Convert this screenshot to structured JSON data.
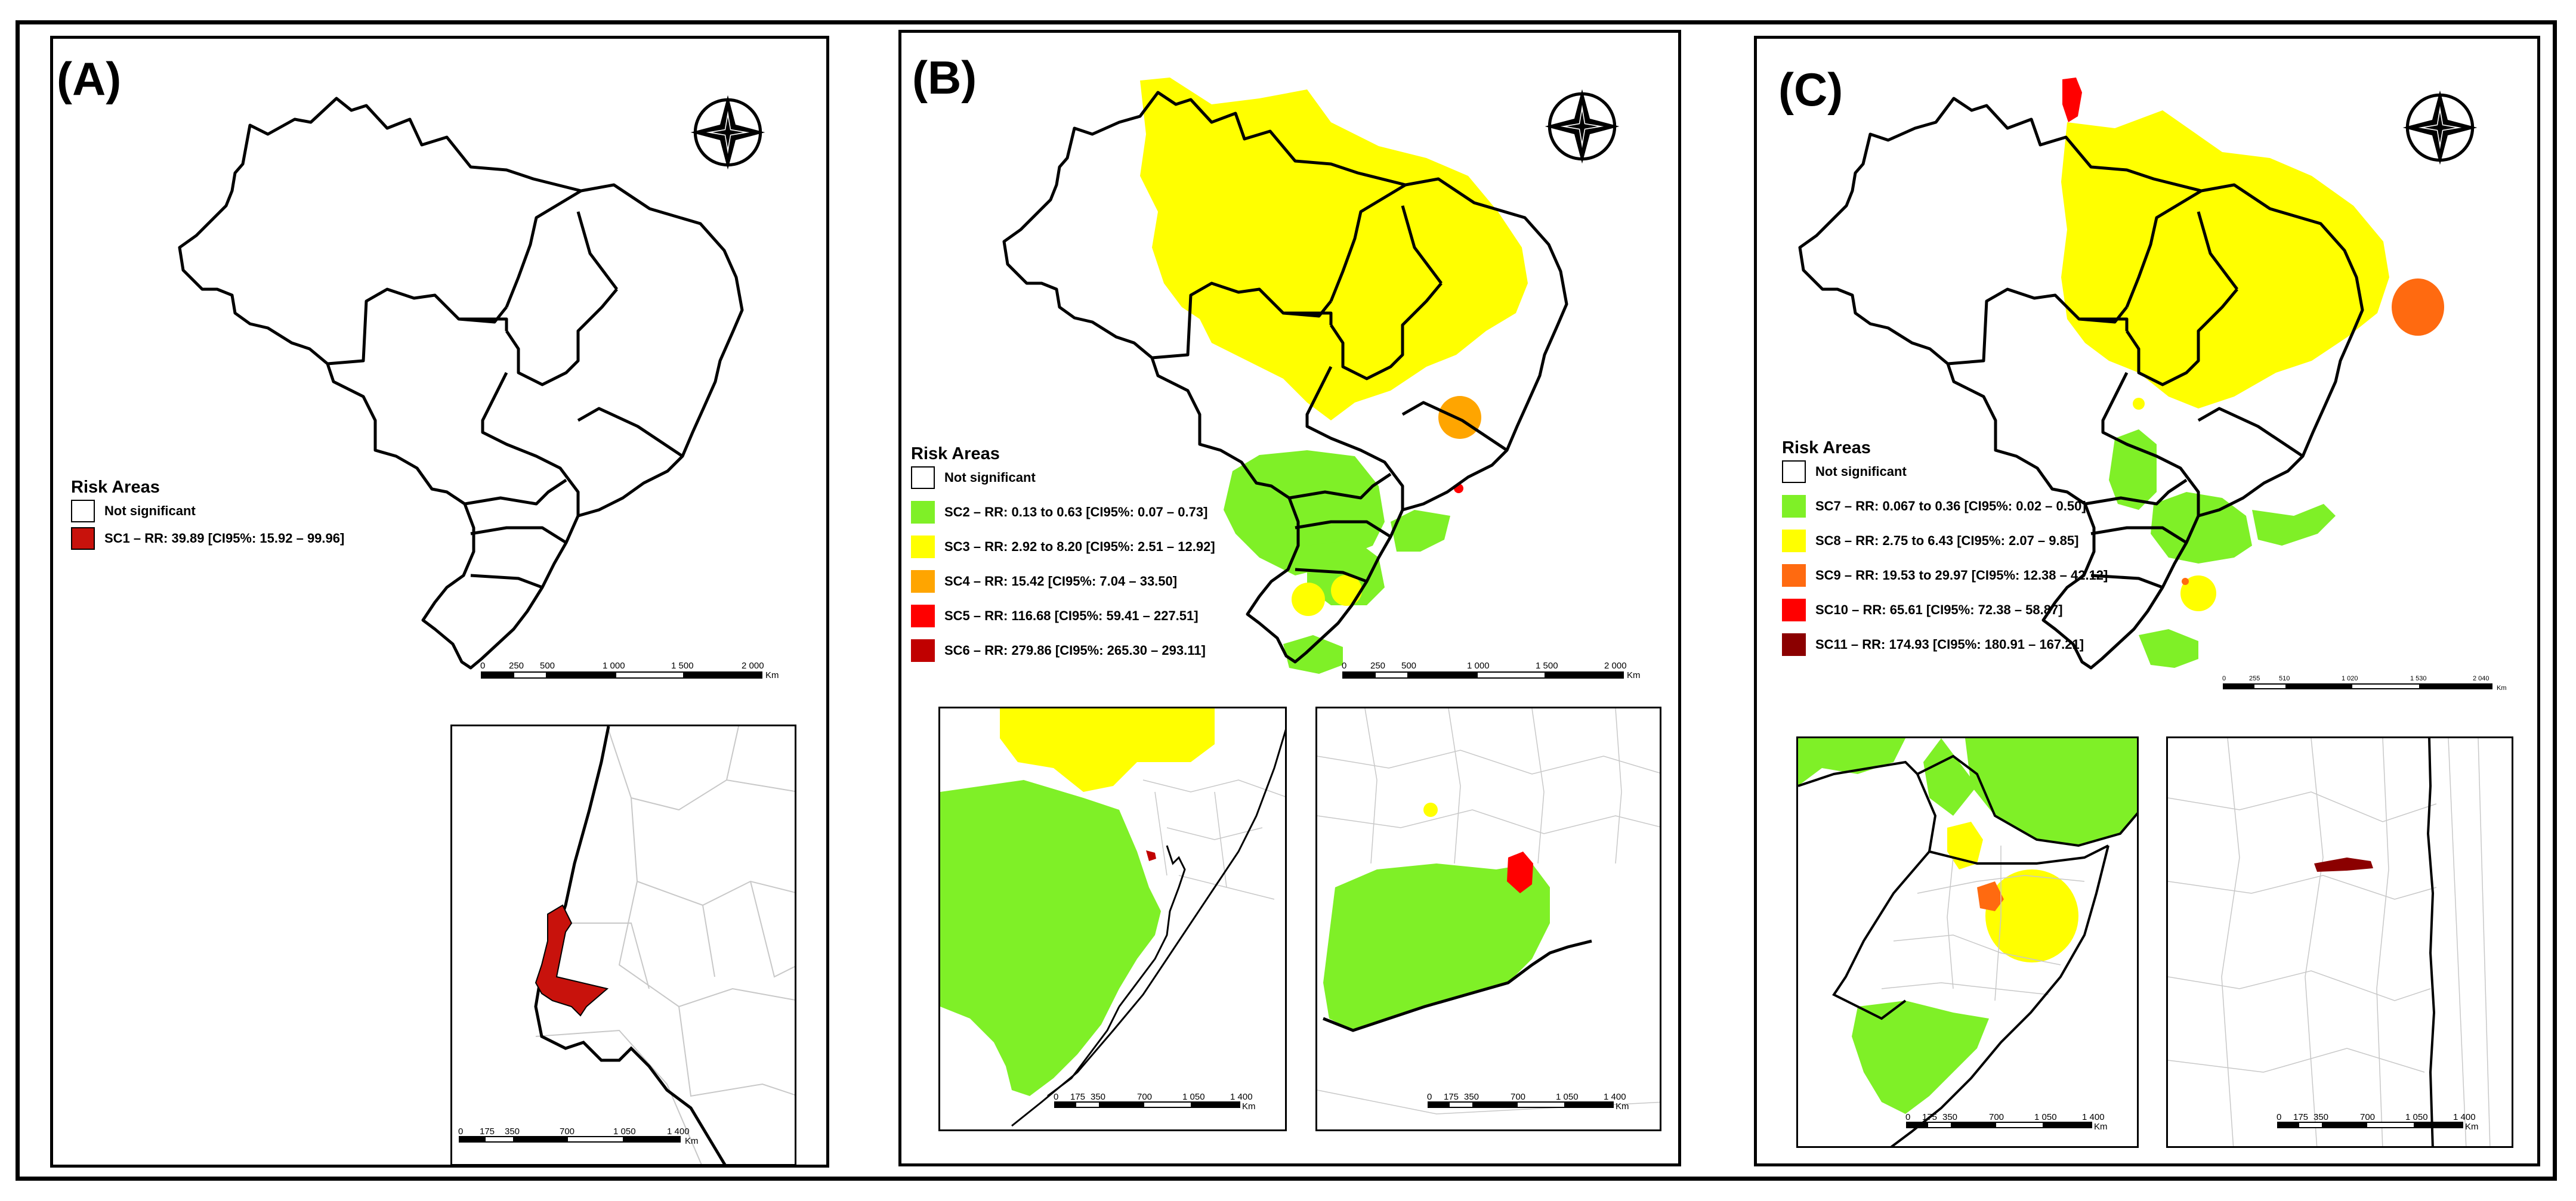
{
  "panels": [
    {
      "label": "(A)",
      "legend": {
        "title": "Risk Areas",
        "items": [
          {
            "label": "Not significant",
            "color": "#ffffff"
          },
          {
            "label": "SC1 – RR: 39.89 [CI95%: 15.92 – 99.96]",
            "color": "#c8120c"
          }
        ]
      },
      "main_scale": {
        "ticks": [
          "0",
          "250",
          "500",
          "1 000",
          "1 500",
          "2 000"
        ],
        "unit": "Km"
      },
      "inset_scale": {
        "ticks": [
          "0",
          "175",
          "350",
          "700",
          "1 050",
          "1 400"
        ],
        "unit": "Km"
      }
    },
    {
      "label": "(B)",
      "legend": {
        "title": "Risk Areas",
        "items": [
          {
            "label": "Not significant",
            "color": "#ffffff"
          },
          {
            "label": "SC2 – RR: 0.13 to 0.63 [CI95%: 0.07 – 0.73]",
            "color": "#7ff027"
          },
          {
            "label": "SC3 – RR: 2.92 to 8.20 [CI95%: 2.51 – 12.92]",
            "color": "#ffff00"
          },
          {
            "label": "SC4 – RR: 15.42 [CI95%: 7.04 – 33.50]",
            "color": "#ffa500"
          },
          {
            "label": "SC5 – RR: 116.68 [CI95%: 59.41 – 227.51]",
            "color": "#ff0000"
          },
          {
            "label": "SC6 – RR: 279.86 [CI95%: 265.30 – 293.11]",
            "color": "#c00000"
          }
        ]
      },
      "main_scale": {
        "ticks": [
          "0",
          "250",
          "500",
          "1 000",
          "1 500",
          "2 000"
        ],
        "unit": "Km"
      },
      "inset_scale": {
        "ticks": [
          "0",
          "175",
          "350",
          "700",
          "1 050",
          "1 400"
        ],
        "unit": "Km"
      }
    },
    {
      "label": "(C)",
      "legend": {
        "title": "Risk Areas",
        "items": [
          {
            "label": "Not significant",
            "color": "#ffffff"
          },
          {
            "label": "SC7 – RR: 0.067 to 0.36 [CI95%: 0.02 – 0.50]",
            "color": "#7ff027"
          },
          {
            "label": "SC8 – RR: 2.75 to 6.43 [CI95%: 2.07 – 9.85]",
            "color": "#ffff00"
          },
          {
            "label": "SC9 – RR: 19.53 to 29.97 [CI95%: 12.38 – 42.12]",
            "color": "#ff6a10"
          },
          {
            "label": "SC10 – RR: 65.61 [CI95%: 72.38 – 58.87]",
            "color": "#ff0000"
          },
          {
            "label": "SC11 – RR: 174.93 [CI95%: 180.91 – 167.21]",
            "color": "#8b0000"
          }
        ]
      },
      "main_scale": {
        "ticks": [
          "0",
          "255",
          "510",
          "1 020",
          "1 530",
          "2 040"
        ],
        "unit": "Km"
      },
      "inset_scale": {
        "ticks": [
          "0",
          "175",
          "350",
          "700",
          "1 050",
          "1 400"
        ],
        "unit": "Km"
      }
    }
  ],
  "colors": {
    "outline": "#000000",
    "municipal_lines": "#c8c8c8"
  }
}
